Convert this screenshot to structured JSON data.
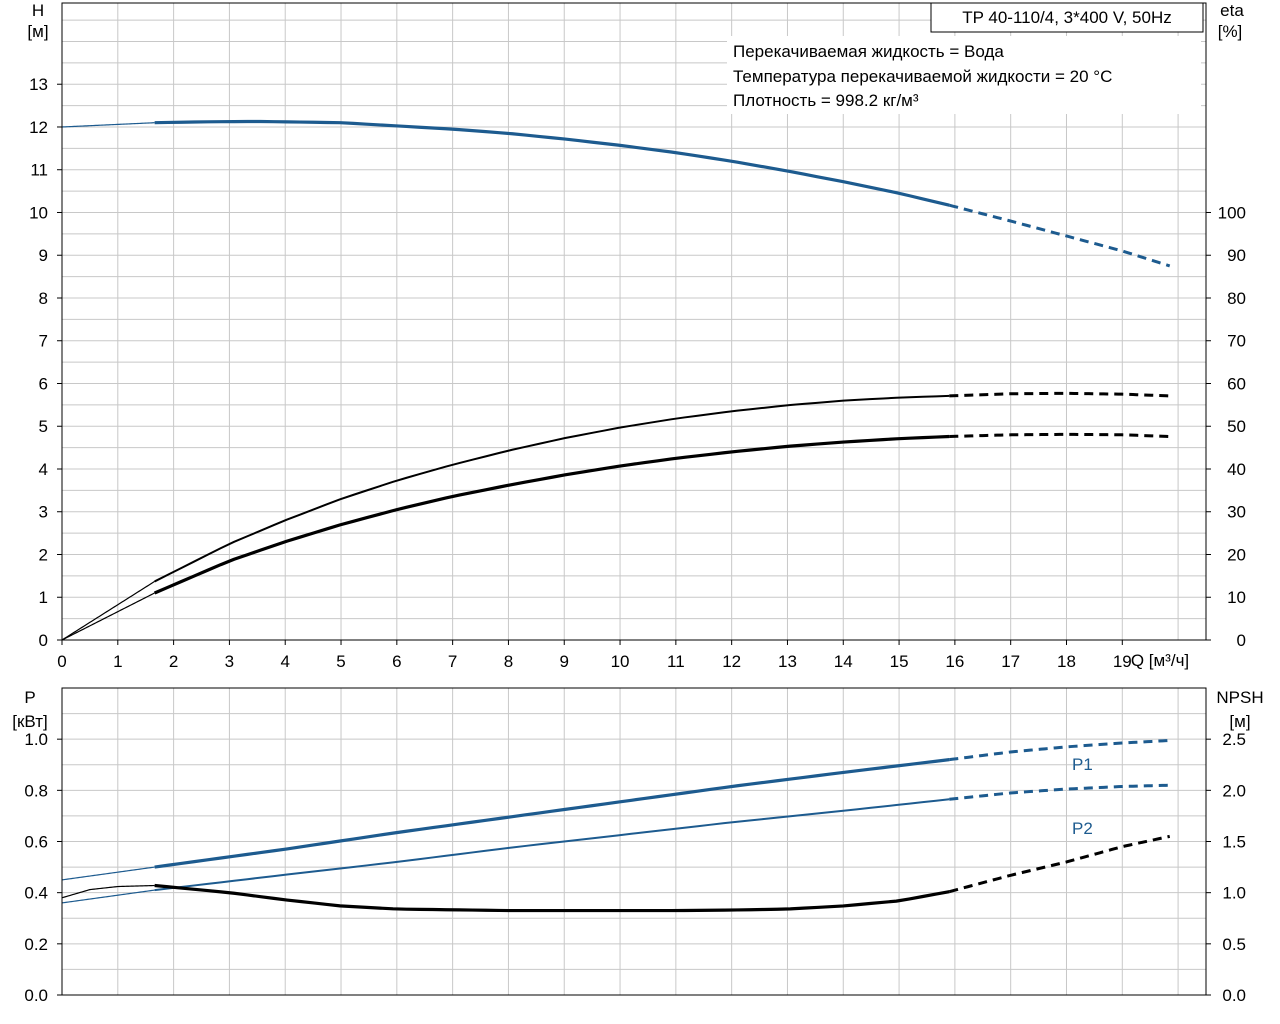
{
  "colors": {
    "blue": "#1d5b8f",
    "black": "#000000",
    "grid": "#c8c8c8"
  },
  "chart_data": [
    {
      "type": "line",
      "title": "TP 40-110/4, 3*400 V, 50Hz",
      "info_lines": [
        "Перекачиваемая жидкость = Вода",
        "Температура перекачиваемой жидкости = 20 °C",
        "Плотность = 998.2 кг/м³"
      ],
      "xlabel": "Q [м³/ч]",
      "xlim": [
        0,
        20.5
      ],
      "x_ticks": [
        0,
        1,
        2,
        3,
        4,
        5,
        6,
        7,
        8,
        9,
        10,
        11,
        12,
        13,
        14,
        15,
        16,
        17,
        18,
        19
      ],
      "ylabel_left": [
        "H",
        "[м]"
      ],
      "ylim_left": [
        0,
        14.9
      ],
      "y_ticks_left": [
        0,
        1,
        2,
        3,
        4,
        5,
        6,
        7,
        8,
        9,
        10,
        11,
        12,
        13
      ],
      "ylabel_right": [
        "eta",
        "[%]"
      ],
      "ylim_right": [
        0,
        149
      ],
      "y_ticks_right": [
        0,
        10,
        20,
        30,
        40,
        50,
        60,
        70,
        80,
        90,
        100
      ],
      "grid": true,
      "series": [
        {
          "axis": "left",
          "color": "blue",
          "x": [
            0,
            1.66,
            2.5,
            3.5,
            5,
            7,
            8,
            9,
            10,
            11,
            12,
            13,
            14,
            15,
            15.9,
            17,
            18,
            19,
            19.85
          ],
          "y": [
            12.0,
            12.1,
            12.12,
            12.13,
            12.1,
            11.95,
            11.85,
            11.72,
            11.57,
            11.4,
            11.2,
            10.97,
            10.72,
            10.45,
            10.17,
            9.8,
            9.45,
            9.1,
            8.75
          ],
          "segments": [
            [
              0,
              1.66,
              "thin"
            ],
            [
              1.66,
              15.9,
              "thick"
            ],
            [
              15.9,
              19.85,
              "dashed"
            ]
          ]
        },
        {
          "axis": "right",
          "color": "black",
          "x": [
            0,
            1.66,
            3,
            4,
            5,
            6,
            7,
            8,
            9,
            10,
            11,
            12,
            13,
            14,
            15,
            15.9,
            17,
            18,
            19,
            19.85
          ],
          "y": [
            0,
            13.7,
            22.5,
            28,
            33,
            37.3,
            41,
            44.3,
            47.2,
            49.7,
            51.8,
            53.5,
            54.9,
            56,
            56.7,
            57.1,
            57.6,
            57.7,
            57.5,
            57.1
          ],
          "segments": [
            [
              0,
              1.66,
              "thin"
            ],
            [
              1.66,
              15.9,
              "medium"
            ],
            [
              15.9,
              19.85,
              "dashed"
            ]
          ]
        },
        {
          "axis": "right",
          "color": "black",
          "x": [
            0,
            1.66,
            3,
            4,
            5,
            6,
            7,
            8,
            9,
            10,
            11,
            12,
            13,
            14,
            15,
            15.9,
            17,
            18,
            19,
            19.85
          ],
          "y": [
            0,
            11,
            18.5,
            23,
            27,
            30.5,
            33.6,
            36.2,
            38.6,
            40.7,
            42.5,
            44,
            45.3,
            46.3,
            47.1,
            47.6,
            48,
            48.1,
            48,
            47.6
          ],
          "segments": [
            [
              0,
              1.66,
              "thin"
            ],
            [
              1.66,
              15.9,
              "thick"
            ],
            [
              15.9,
              19.85,
              "dashed"
            ]
          ]
        }
      ]
    },
    {
      "type": "line",
      "xlim": [
        0,
        20.5
      ],
      "ylabel_left": [
        "P",
        "[кВт]"
      ],
      "ylim_left": [
        0,
        1.2
      ],
      "y_ticks_left": [
        "0.0",
        "0.2",
        "0.4",
        "0.6",
        "0.8",
        "1.0"
      ],
      "ylabel_right": [
        "NPSH",
        "[м]"
      ],
      "ylim_right": [
        0,
        3.0
      ],
      "y_ticks_right": [
        "0.0",
        "0.5",
        "1.0",
        "1.5",
        "2.0",
        "2.5"
      ],
      "grid": true,
      "series": [
        {
          "name": "P1",
          "axis": "left",
          "color": "blue",
          "x": [
            0,
            1.66,
            4,
            6,
            8,
            10,
            12,
            14,
            15.9,
            17,
            18,
            19,
            19.85
          ],
          "y": [
            0.45,
            0.5,
            0.57,
            0.635,
            0.695,
            0.755,
            0.815,
            0.87,
            0.92,
            0.95,
            0.97,
            0.985,
            0.995
          ],
          "segments": [
            [
              0,
              1.66,
              "thin"
            ],
            [
              1.66,
              15.9,
              "thick"
            ],
            [
              15.9,
              19.85,
              "dashed"
            ]
          ]
        },
        {
          "name": "P2",
          "axis": "left",
          "color": "blue",
          "x": [
            0,
            1.66,
            4,
            6,
            8,
            10,
            12,
            14,
            15.9,
            17,
            18,
            19,
            19.85
          ],
          "y": [
            0.36,
            0.41,
            0.47,
            0.52,
            0.575,
            0.625,
            0.675,
            0.72,
            0.765,
            0.79,
            0.805,
            0.815,
            0.82
          ],
          "segments": [
            [
              0,
              1.66,
              "thin"
            ],
            [
              1.66,
              15.9,
              "medium"
            ],
            [
              15.9,
              19.85,
              "dashed"
            ]
          ]
        },
        {
          "axis": "right",
          "color": "black",
          "x": [
            0,
            0.5,
            1,
            1.66,
            3,
            4,
            5,
            6,
            8,
            10,
            11,
            12,
            13,
            14,
            15,
            15.9,
            17,
            18,
            19,
            19.85
          ],
          "y": [
            0.95,
            1.03,
            1.06,
            1.07,
            1.0,
            0.93,
            0.87,
            0.84,
            0.825,
            0.825,
            0.825,
            0.83,
            0.84,
            0.87,
            0.92,
            1.01,
            1.17,
            1.3,
            1.45,
            1.55
          ],
          "segments": [
            [
              0,
              1.66,
              "thin"
            ],
            [
              1.66,
              15.9,
              "thick"
            ],
            [
              15.9,
              19.85,
              "dashed"
            ]
          ]
        }
      ]
    }
  ]
}
